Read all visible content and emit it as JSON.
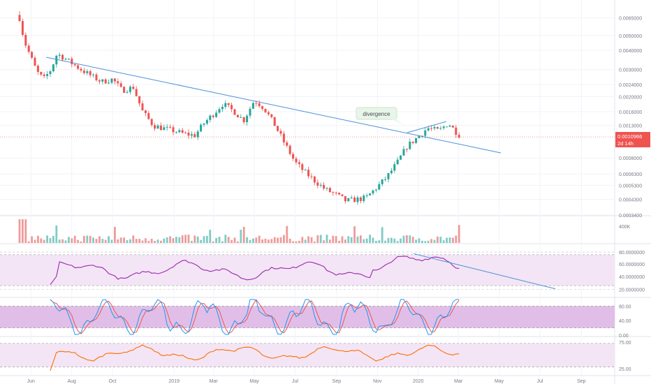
{
  "chart_data": [
    {
      "type": "candlestick",
      "panel": "price",
      "y_axis_scale": "log",
      "ylim": [
        0.00037,
        0.0075
      ],
      "y_ticks": [
        "0.0065000",
        "0.0050000",
        "0.0040000",
        "0.0030000",
        "0.0024000",
        "0.0020000",
        "0.0016000",
        "0.0013000",
        "0.0008000",
        "0.0006300",
        "0.0005300",
        "0.0004300",
        "0.0003400"
      ],
      "x_ticks": [
        "Jun",
        "Aug",
        "Oct",
        "2019",
        "Mar",
        "May",
        "Jul",
        "Sep",
        "Nov",
        "2020",
        "Mar",
        "May",
        "Jul",
        "Sep"
      ],
      "last_price": "0.0010966",
      "countdown": "2d 14h",
      "annotations": [
        "divergence"
      ],
      "close_path": [
        [
          "2018-05-15",
          0.0065
        ],
        [
          "2018-05-22",
          0.0046
        ],
        [
          "2018-06-01",
          0.0036
        ],
        [
          "2018-06-10",
          0.0029
        ],
        [
          "2018-06-20",
          0.0026
        ],
        [
          "2018-07-01",
          0.003
        ],
        [
          "2018-07-10",
          0.0038
        ],
        [
          "2018-07-20",
          0.0036
        ],
        [
          "2018-08-01",
          0.0033
        ],
        [
          "2018-08-15",
          0.003
        ],
        [
          "2018-09-01",
          0.0027
        ],
        [
          "2018-09-15",
          0.0025
        ],
        [
          "2018-10-01",
          0.0026
        ],
        [
          "2018-10-15",
          0.0022
        ],
        [
          "2018-11-01",
          0.0023
        ],
        [
          "2018-11-15",
          0.0016
        ],
        [
          "2018-12-01",
          0.0013
        ],
        [
          "2018-12-15",
          0.00125
        ],
        [
          "2019-01-01",
          0.0012
        ],
        [
          "2019-01-15",
          0.00115
        ],
        [
          "2019-02-01",
          0.00112
        ],
        [
          "2019-02-15",
          0.00135
        ],
        [
          "2019-03-01",
          0.00155
        ],
        [
          "2019-03-15",
          0.0018
        ],
        [
          "2019-04-01",
          0.0016
        ],
        [
          "2019-04-15",
          0.0014
        ],
        [
          "2019-05-01",
          0.0019
        ],
        [
          "2019-05-15",
          0.0017
        ],
        [
          "2019-06-01",
          0.0013
        ],
        [
          "2019-06-15",
          0.001
        ],
        [
          "2019-07-01",
          0.00075
        ],
        [
          "2019-07-15",
          0.00065
        ],
        [
          "2019-08-01",
          0.00056
        ],
        [
          "2019-08-15",
          0.0005
        ],
        [
          "2019-09-01",
          0.00046
        ],
        [
          "2019-09-15",
          0.00042
        ],
        [
          "2019-10-01",
          0.00043
        ],
        [
          "2019-10-15",
          0.00044
        ],
        [
          "2019-11-01",
          0.00052
        ],
        [
          "2019-11-15",
          0.0006
        ],
        [
          "2019-12-01",
          0.00075
        ],
        [
          "2019-12-15",
          0.00095
        ],
        [
          "2020-01-01",
          0.0011
        ],
        [
          "2020-01-15",
          0.00125
        ],
        [
          "2020-02-01",
          0.0012
        ],
        [
          "2020-02-15",
          0.00135
        ],
        [
          "2020-02-25",
          0.0012
        ],
        [
          "2020-03-05",
          0.0011
        ]
      ]
    },
    {
      "type": "bar",
      "panel": "volume",
      "y_ticks": [
        "400K"
      ]
    },
    {
      "type": "line",
      "panel": "rsi",
      "y_ticks": [
        "80.0000000",
        "60.0000000",
        "40.0000000",
        "20.0000000"
      ],
      "band": [
        30,
        70
      ]
    },
    {
      "type": "line",
      "panel": "stochastic",
      "y_ticks": [
        "80.00",
        "40.00",
        "0.00"
      ],
      "band": [
        20,
        80
      ]
    },
    {
      "type": "line",
      "panel": "oscillator",
      "y_ticks": [
        "75.00",
        "25.00"
      ],
      "band": [
        25,
        75
      ]
    }
  ],
  "colors": {
    "up": "#26a69a",
    "down": "#ef5350",
    "trendline": "#4a90d9",
    "rsi_line": "#9c27b0",
    "stoch_k": "#2196f3",
    "stoch_d": "#ef5350",
    "osc_line": "#ff6d00",
    "band_fill": "#f3e5f5",
    "stoch_band_fill": "#e1bee7",
    "price_label_bg": "#ef5350"
  }
}
